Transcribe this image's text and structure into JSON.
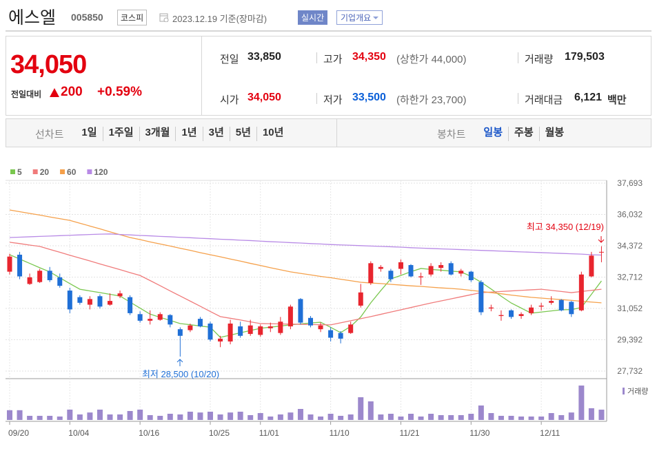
{
  "header": {
    "name": "에스엘",
    "code": "005850",
    "market": "코스피",
    "date": "2023.12.19 기준(장마감)",
    "realtime": "실시간",
    "company_info": "기업개요"
  },
  "quote": {
    "price": "34,050",
    "change_label": "전일대비",
    "change": "200",
    "change_rate": "+0.59%",
    "items": [
      {
        "label": "전일",
        "value": "33,850",
        "color": "#222222"
      },
      {
        "label": "고가",
        "value": "34,350",
        "note": "(상한가 44,000)",
        "color": "#e3000f"
      },
      {
        "label": "거래량",
        "value": "179,503",
        "color": "#222222"
      },
      {
        "label": "시가",
        "value": "34,050",
        "color": "#e3000f"
      },
      {
        "label": "저가",
        "value": "33,500",
        "note": "(하한가 23,700)",
        "color": "#0a5fd8"
      },
      {
        "label": "거래대금",
        "value": "6,121",
        "unit": "백만",
        "color": "#222222"
      }
    ]
  },
  "tabs": {
    "line_label": "선차트",
    "line_periods": [
      "1일",
      "1주일",
      "3개월",
      "1년",
      "3년",
      "5년",
      "10년"
    ],
    "candle_label": "봉차트",
    "candle_periods": [
      "일봉",
      "주봉",
      "월봉"
    ],
    "active_candle_period": 0,
    "active_color": "#1a56c8"
  },
  "chart_data": {
    "type": "candlestick",
    "categories": [
      "09/20",
      null,
      null,
      null,
      null,
      null,
      "10/04",
      null,
      null,
      null,
      null,
      null,
      null,
      "10/16",
      null,
      null,
      null,
      null,
      null,
      null,
      "10/25",
      null,
      null,
      null,
      null,
      "11/01",
      null,
      null,
      null,
      null,
      null,
      null,
      "11/10",
      null,
      null,
      null,
      null,
      null,
      null,
      "11/21",
      null,
      null,
      null,
      null,
      null,
      null,
      "11/30",
      null,
      null,
      null,
      null,
      null,
      null,
      "12/11",
      null,
      null,
      null,
      null,
      null,
      null
    ],
    "open": [
      33000,
      33900,
      32350,
      32450,
      33050,
      32700,
      32000,
      31650,
      31250,
      31700,
      31250,
      31700,
      31650,
      30750,
      30400,
      30450,
      30700,
      29950,
      29900,
      30500,
      30250,
      29300,
      29300,
      30100,
      29700,
      29650,
      30000,
      29750,
      30100,
      31550,
      30550,
      29950,
      29900,
      29750,
      29750,
      31200,
      32400,
      33150,
      33050,
      33150,
      33350,
      32700,
      32850,
      33200,
      33450,
      32900,
      33000,
      32450,
      31050,
      30650,
      30950,
      30650,
      30800,
      31150,
      31350,
      31500,
      31400,
      30950,
      32750,
      34050
    ],
    "high": [
      33950,
      34050,
      32900,
      33150,
      33250,
      32900,
      32150,
      31750,
      31700,
      31800,
      31850,
      32000,
      31750,
      30900,
      30950,
      30850,
      30750,
      30050,
      30250,
      30600,
      30350,
      29600,
      30450,
      30350,
      30450,
      30200,
      30300,
      30600,
      31250,
      31600,
      30650,
      30300,
      30050,
      29850,
      30350,
      32350,
      33550,
      33350,
      33150,
      33650,
      33400,
      32950,
      33450,
      33500,
      33550,
      33150,
      33050,
      32550,
      31250,
      30950,
      31000,
      30850,
      31250,
      31350,
      31700,
      31550,
      31450,
      33000,
      34050,
      34350
    ],
    "low": [
      32850,
      32600,
      32300,
      32400,
      32450,
      32150,
      30800,
      31250,
      31000,
      31050,
      31200,
      31600,
      30700,
      30300,
      30200,
      30400,
      30050,
      28500,
      29800,
      30050,
      29300,
      29000,
      29150,
      29500,
      29600,
      29550,
      29800,
      29650,
      29950,
      30200,
      30050,
      29800,
      29300,
      29200,
      29700,
      31100,
      32300,
      33000,
      32450,
      32850,
      32700,
      32300,
      32750,
      33000,
      32800,
      32750,
      32450,
      30700,
      30900,
      30400,
      30500,
      30500,
      30700,
      30950,
      31250,
      30900,
      30600,
      30900,
      32700,
      33500
    ],
    "close": [
      33800,
      32750,
      32700,
      33050,
      32550,
      32250,
      31000,
      31350,
      31550,
      31150,
      31450,
      31850,
      30800,
      30400,
      30500,
      30750,
      30200,
      29600,
      30150,
      30100,
      29400,
      29450,
      30250,
      29600,
      30150,
      30100,
      30100,
      30350,
      31150,
      30300,
      30150,
      30150,
      29500,
      29450,
      30200,
      31900,
      33450,
      33250,
      32600,
      33500,
      32750,
      32750,
      33300,
      33350,
      32850,
      33050,
      32550,
      30850,
      31100,
      30700,
      30600,
      30750,
      31100,
      31200,
      31450,
      30950,
      30750,
      32850,
      33850,
      34050
    ],
    "up_color": "#e8252e",
    "down_color": "#1f6fd6",
    "series": [
      {
        "name": "5",
        "color": "#7ac74f",
        "values": [
          33900,
          33670,
          33440,
          33210,
          32990,
          32680,
          32370,
          32070,
          31980,
          31890,
          31800,
          31710,
          31390,
          31070,
          30750,
          30580,
          30420,
          30250,
          30190,
          30120,
          30060,
          29520,
          29640,
          29760,
          29880,
          30000,
          30060,
          30120,
          30180,
          30230,
          30280,
          30320,
          30050,
          29770,
          30100,
          30600,
          31350,
          32000,
          32620,
          32800,
          33000,
          33170,
          33120,
          33080,
          33030,
          32990,
          32750,
          32440,
          32080,
          31700,
          31340,
          31070,
          30800,
          30860,
          30920,
          30980,
          30990,
          31100,
          31800,
          32510
        ]
      },
      {
        "name": "20",
        "color": "#f07b7b",
        "values": [
          34560,
          34490,
          34410,
          34340,
          34180,
          34030,
          33870,
          33720,
          33570,
          33410,
          33260,
          33110,
          32950,
          32800,
          32530,
          32260,
          31980,
          31710,
          31440,
          31170,
          30890,
          30620,
          30530,
          30440,
          30340,
          30250,
          30240,
          30230,
          30220,
          30210,
          30200,
          30190,
          30180,
          30290,
          30400,
          30510,
          30620,
          30740,
          30860,
          30980,
          31100,
          31220,
          31340,
          31450,
          31560,
          31670,
          31780,
          31890,
          31920,
          31950,
          31980,
          32010,
          32040,
          32070,
          32010,
          31950,
          31890,
          31950,
          32010,
          32070
        ]
      },
      {
        "name": "60",
        "color": "#f5a04a",
        "values": [
          36270,
          36180,
          36090,
          36000,
          35900,
          35810,
          35720,
          35570,
          35420,
          35270,
          35110,
          34960,
          34810,
          34700,
          34580,
          34470,
          34360,
          34240,
          34130,
          34010,
          33900,
          33790,
          33670,
          33560,
          33440,
          33330,
          33210,
          33100,
          32990,
          32910,
          32830,
          32750,
          32680,
          32600,
          32520,
          32440,
          32400,
          32370,
          32330,
          32290,
          32250,
          32220,
          32180,
          32140,
          32110,
          32070,
          32010,
          31950,
          31890,
          31830,
          31760,
          31700,
          31640,
          31600,
          31560,
          31520,
          31480,
          31430,
          31390,
          31350
        ]
      },
      {
        "name": "120",
        "color": "#b88ae6",
        "values": [
          34810,
          34830,
          34850,
          34870,
          34890,
          34910,
          34930,
          34950,
          34970,
          34990,
          35000,
          34970,
          34950,
          34920,
          34900,
          34870,
          34850,
          34820,
          34800,
          34770,
          34750,
          34720,
          34700,
          34670,
          34650,
          34620,
          34590,
          34570,
          34540,
          34520,
          34490,
          34470,
          34440,
          34420,
          34400,
          34380,
          34360,
          34340,
          34320,
          34300,
          34270,
          34250,
          34230,
          34210,
          34190,
          34170,
          34150,
          34130,
          34110,
          34090,
          34070,
          34050,
          34030,
          34010,
          33990,
          33970,
          33950,
          33930,
          33900,
          33880
        ]
      }
    ],
    "volume": {
      "name": "거래량",
      "color": "#9c88cc",
      "values": [
        170000,
        170000,
        72000,
        72000,
        72000,
        60000,
        180000,
        96000,
        130000,
        180000,
        96000,
        96000,
        156000,
        180000,
        84000,
        72000,
        108000,
        96000,
        144000,
        130000,
        144000,
        96000,
        130000,
        144000,
        84000,
        120000,
        60000,
        96000,
        130000,
        192000,
        96000,
        60000,
        108000,
        72000,
        96000,
        396000,
        324000,
        96000,
        108000,
        60000,
        108000,
        60000,
        108000,
        84000,
        84000,
        84000,
        108000,
        252000,
        120000,
        72000,
        72000,
        60000,
        60000,
        60000,
        120000,
        84000,
        130000,
        600000,
        204000,
        179503
      ]
    },
    "ylim": [
      27330,
      37840
    ],
    "yticks": [
      {
        "value": 27732,
        "label": "27,732"
      },
      {
        "value": 29392,
        "label": "29,392"
      },
      {
        "value": 31052,
        "label": "31,052"
      },
      {
        "value": 32712,
        "label": "32,712"
      },
      {
        "value": 34372,
        "label": "34,372"
      },
      {
        "value": 36032,
        "label": "36,032"
      },
      {
        "value": 37693,
        "label": "37,693"
      }
    ],
    "grid": true,
    "annotations": [
      "최고 34,350 (12/19)",
      "최저 28,500 (10/20)"
    ]
  }
}
